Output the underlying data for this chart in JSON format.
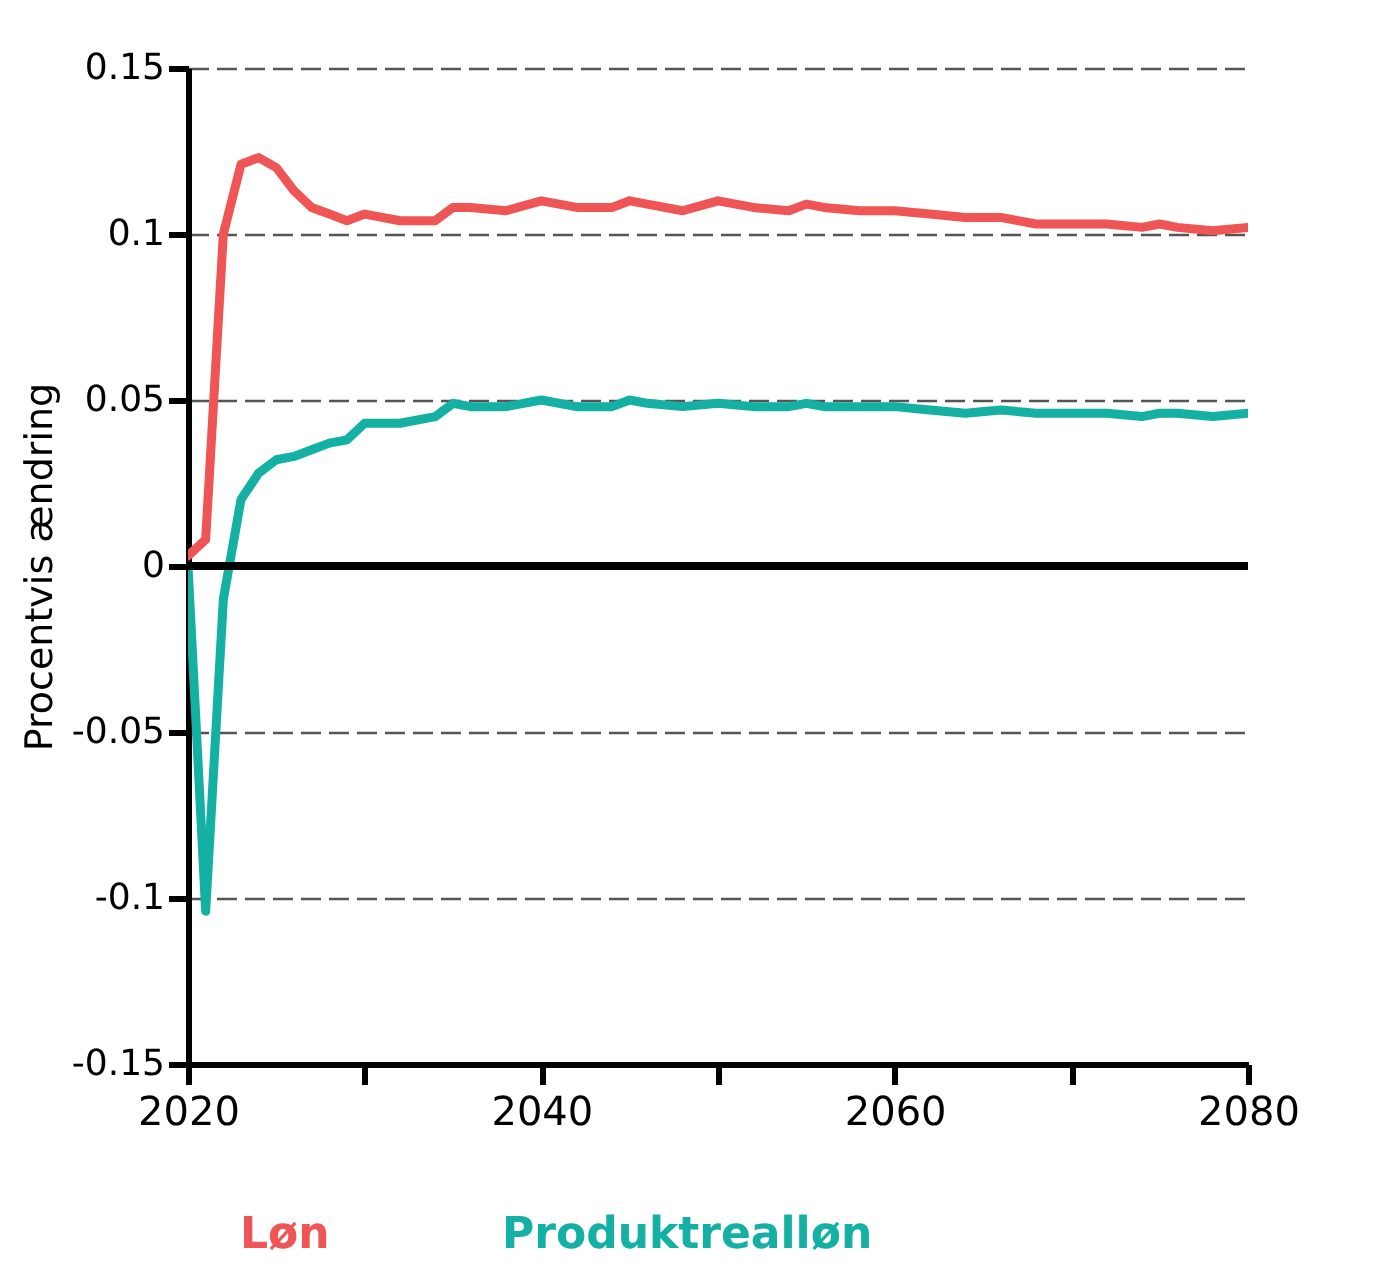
{
  "chart_data": {
    "type": "line",
    "ylabel": "Procentvis ændring",
    "x": [
      2020,
      2021,
      2022,
      2023,
      2024,
      2025,
      2026,
      2027,
      2028,
      2029,
      2030,
      2032,
      2034,
      2035,
      2036,
      2038,
      2040,
      2042,
      2044,
      2045,
      2046,
      2048,
      2050,
      2052,
      2054,
      2055,
      2056,
      2058,
      2060,
      2062,
      2064,
      2066,
      2068,
      2070,
      2072,
      2074,
      2075,
      2076,
      2078,
      2080
    ],
    "series": [
      {
        "name": "Løn",
        "color": "#f05555",
        "values": [
          0.003,
          0.008,
          0.1,
          0.121,
          0.123,
          0.12,
          0.113,
          0.108,
          0.106,
          0.104,
          0.106,
          0.104,
          0.104,
          0.108,
          0.108,
          0.107,
          0.11,
          0.108,
          0.108,
          0.11,
          0.109,
          0.107,
          0.11,
          0.108,
          0.107,
          0.109,
          0.108,
          0.107,
          0.107,
          0.106,
          0.105,
          0.105,
          0.103,
          0.103,
          0.103,
          0.102,
          0.103,
          0.102,
          0.101,
          0.102
        ]
      },
      {
        "name": "Produktrealløn",
        "color": "#14b0a4",
        "values": [
          0,
          -0.104,
          -0.01,
          0.02,
          0.028,
          0.032,
          0.033,
          0.035,
          0.037,
          0.038,
          0.043,
          0.043,
          0.045,
          0.049,
          0.048,
          0.048,
          0.05,
          0.048,
          0.048,
          0.05,
          0.049,
          0.048,
          0.049,
          0.048,
          0.048,
          0.049,
          0.048,
          0.048,
          0.048,
          0.047,
          0.046,
          0.047,
          0.046,
          0.046,
          0.046,
          0.045,
          0.046,
          0.046,
          0.045,
          0.046
        ]
      }
    ],
    "xlim": [
      2020,
      2080
    ],
    "xticks": [
      2020,
      {
        "value": 2030,
        "label": null
      },
      2040,
      {
        "value": 2050,
        "label": null
      },
      2060,
      {
        "value": 2070,
        "label": null
      },
      2080
    ],
    "ylim": [
      -0.15,
      0.15
    ],
    "yticks": [
      -0.15,
      -0.1,
      -0.05,
      0,
      0.05,
      0.1,
      0.15
    ],
    "ref_lines": [
      {
        "axis": "y",
        "value": 0,
        "color": "#000000"
      }
    ],
    "grid": "y",
    "legend": "bottom",
    "line_style": "solid",
    "marker": "none"
  }
}
